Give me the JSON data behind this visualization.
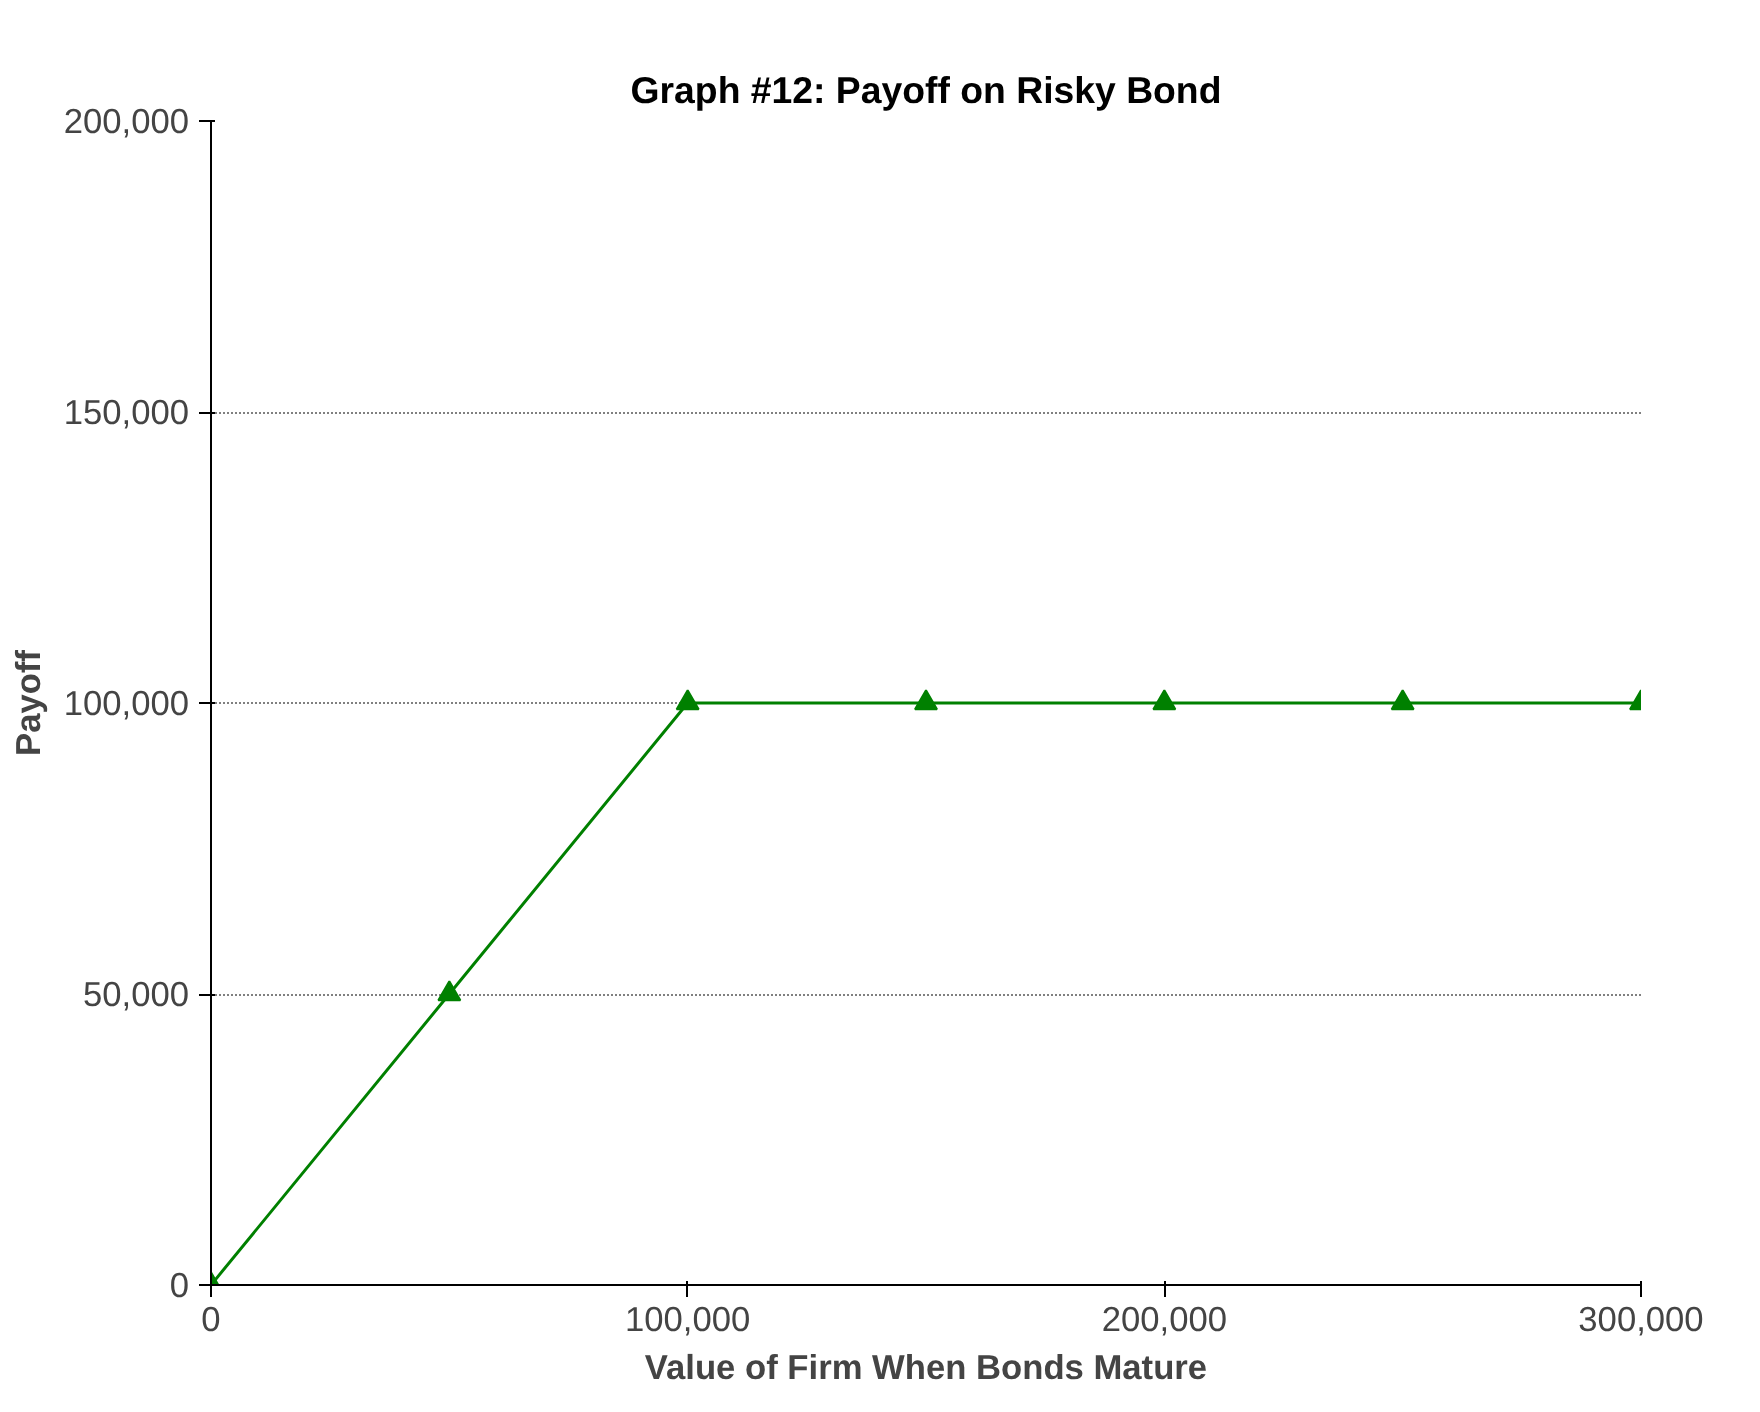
{
  "chart_data": {
    "type": "line",
    "title": "Graph #12: Payoff on Risky Bond",
    "xlabel": "Value of Firm When Bonds Mature",
    "ylabel": "Payoff",
    "x": [
      0,
      50000,
      100000,
      150000,
      200000,
      250000,
      300000
    ],
    "series": [
      {
        "color": "#008000",
        "values": [
          0,
          50000,
          100000,
          100000,
          100000,
          100000,
          100000
        ]
      }
    ],
    "xlim": [
      0,
      300000
    ],
    "xticks": [
      {
        "value": 0,
        "label": "0"
      },
      {
        "value": 100000,
        "label": "100,000"
      },
      {
        "value": 200000,
        "label": "200,000"
      },
      {
        "value": 300000,
        "label": "300,000"
      }
    ],
    "ylim": [
      0,
      200000
    ],
    "yticks": [
      {
        "value": 0,
        "label": "0"
      },
      {
        "value": 50000,
        "label": "50,000"
      },
      {
        "value": 100000,
        "label": "100,000"
      },
      {
        "value": 150000,
        "label": "150,000"
      },
      {
        "value": 200000,
        "label": "200,000"
      }
    ],
    "grid": "y",
    "marker": "triangle",
    "line_style": "solid"
  }
}
